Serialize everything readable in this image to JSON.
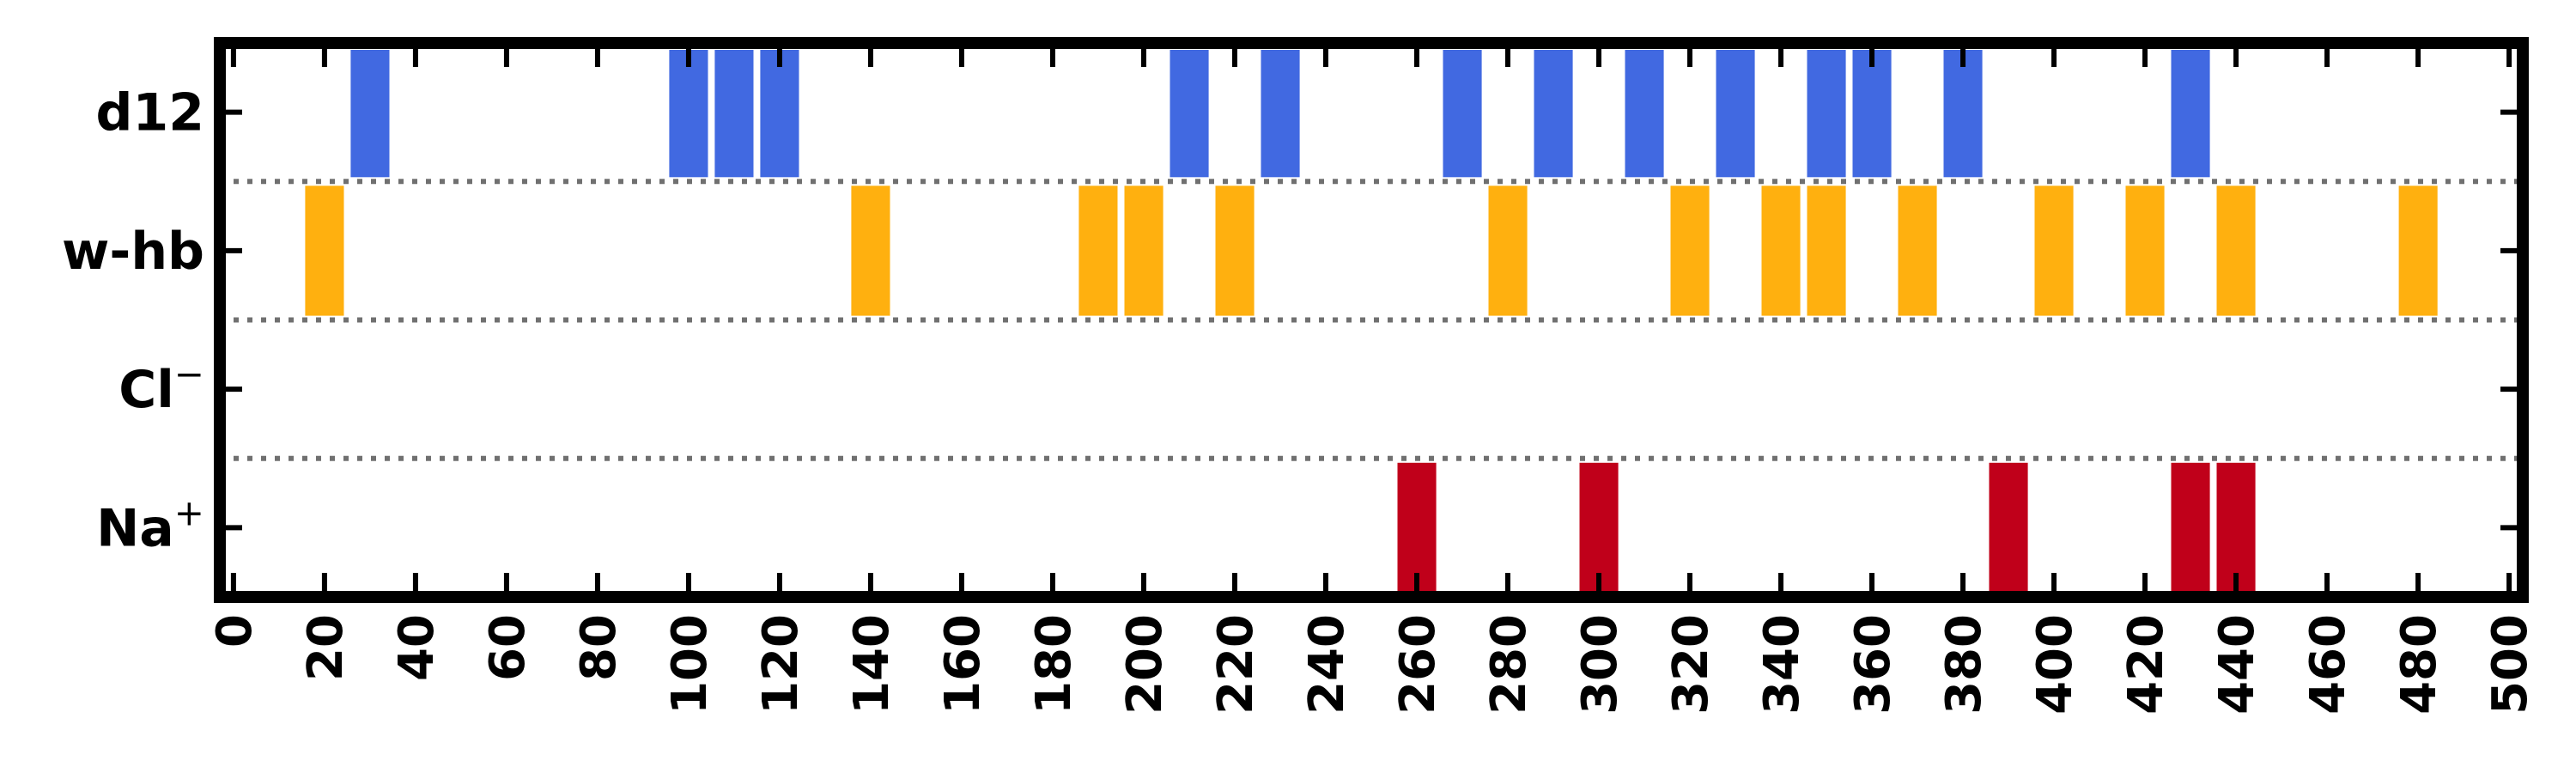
{
  "chart_data": {
    "type": "bar",
    "title": "",
    "xlabel": "",
    "ylabel": "",
    "xlim": [
      -3,
      503
    ],
    "grid": false,
    "legend": "none",
    "bar_width": 8.5,
    "x_ticks": [
      0,
      20,
      40,
      60,
      80,
      100,
      120,
      140,
      160,
      180,
      200,
      220,
      240,
      260,
      280,
      300,
      320,
      340,
      360,
      380,
      400,
      420,
      440,
      460,
      480,
      500
    ],
    "categories": [
      "d12",
      "w-hb",
      "Cl",
      "Na"
    ],
    "category_superscripts": [
      "",
      "",
      "−",
      "+"
    ],
    "series": [
      {
        "name": "d12",
        "color": "#4169E1",
        "x": [
          30,
          100,
          110,
          120,
          210,
          230,
          270,
          290,
          310,
          330,
          350,
          360,
          380,
          430
        ]
      },
      {
        "name": "w-hb",
        "color": "#FFB00F",
        "x": [
          20,
          140,
          190,
          200,
          220,
          280,
          320,
          340,
          350,
          370,
          400,
          420,
          440,
          480
        ]
      },
      {
        "name": "Cl",
        "color": "#808080",
        "x": []
      },
      {
        "name": "Na",
        "color": "#C0001A",
        "x": [
          260,
          300,
          390,
          430,
          440
        ]
      }
    ]
  }
}
